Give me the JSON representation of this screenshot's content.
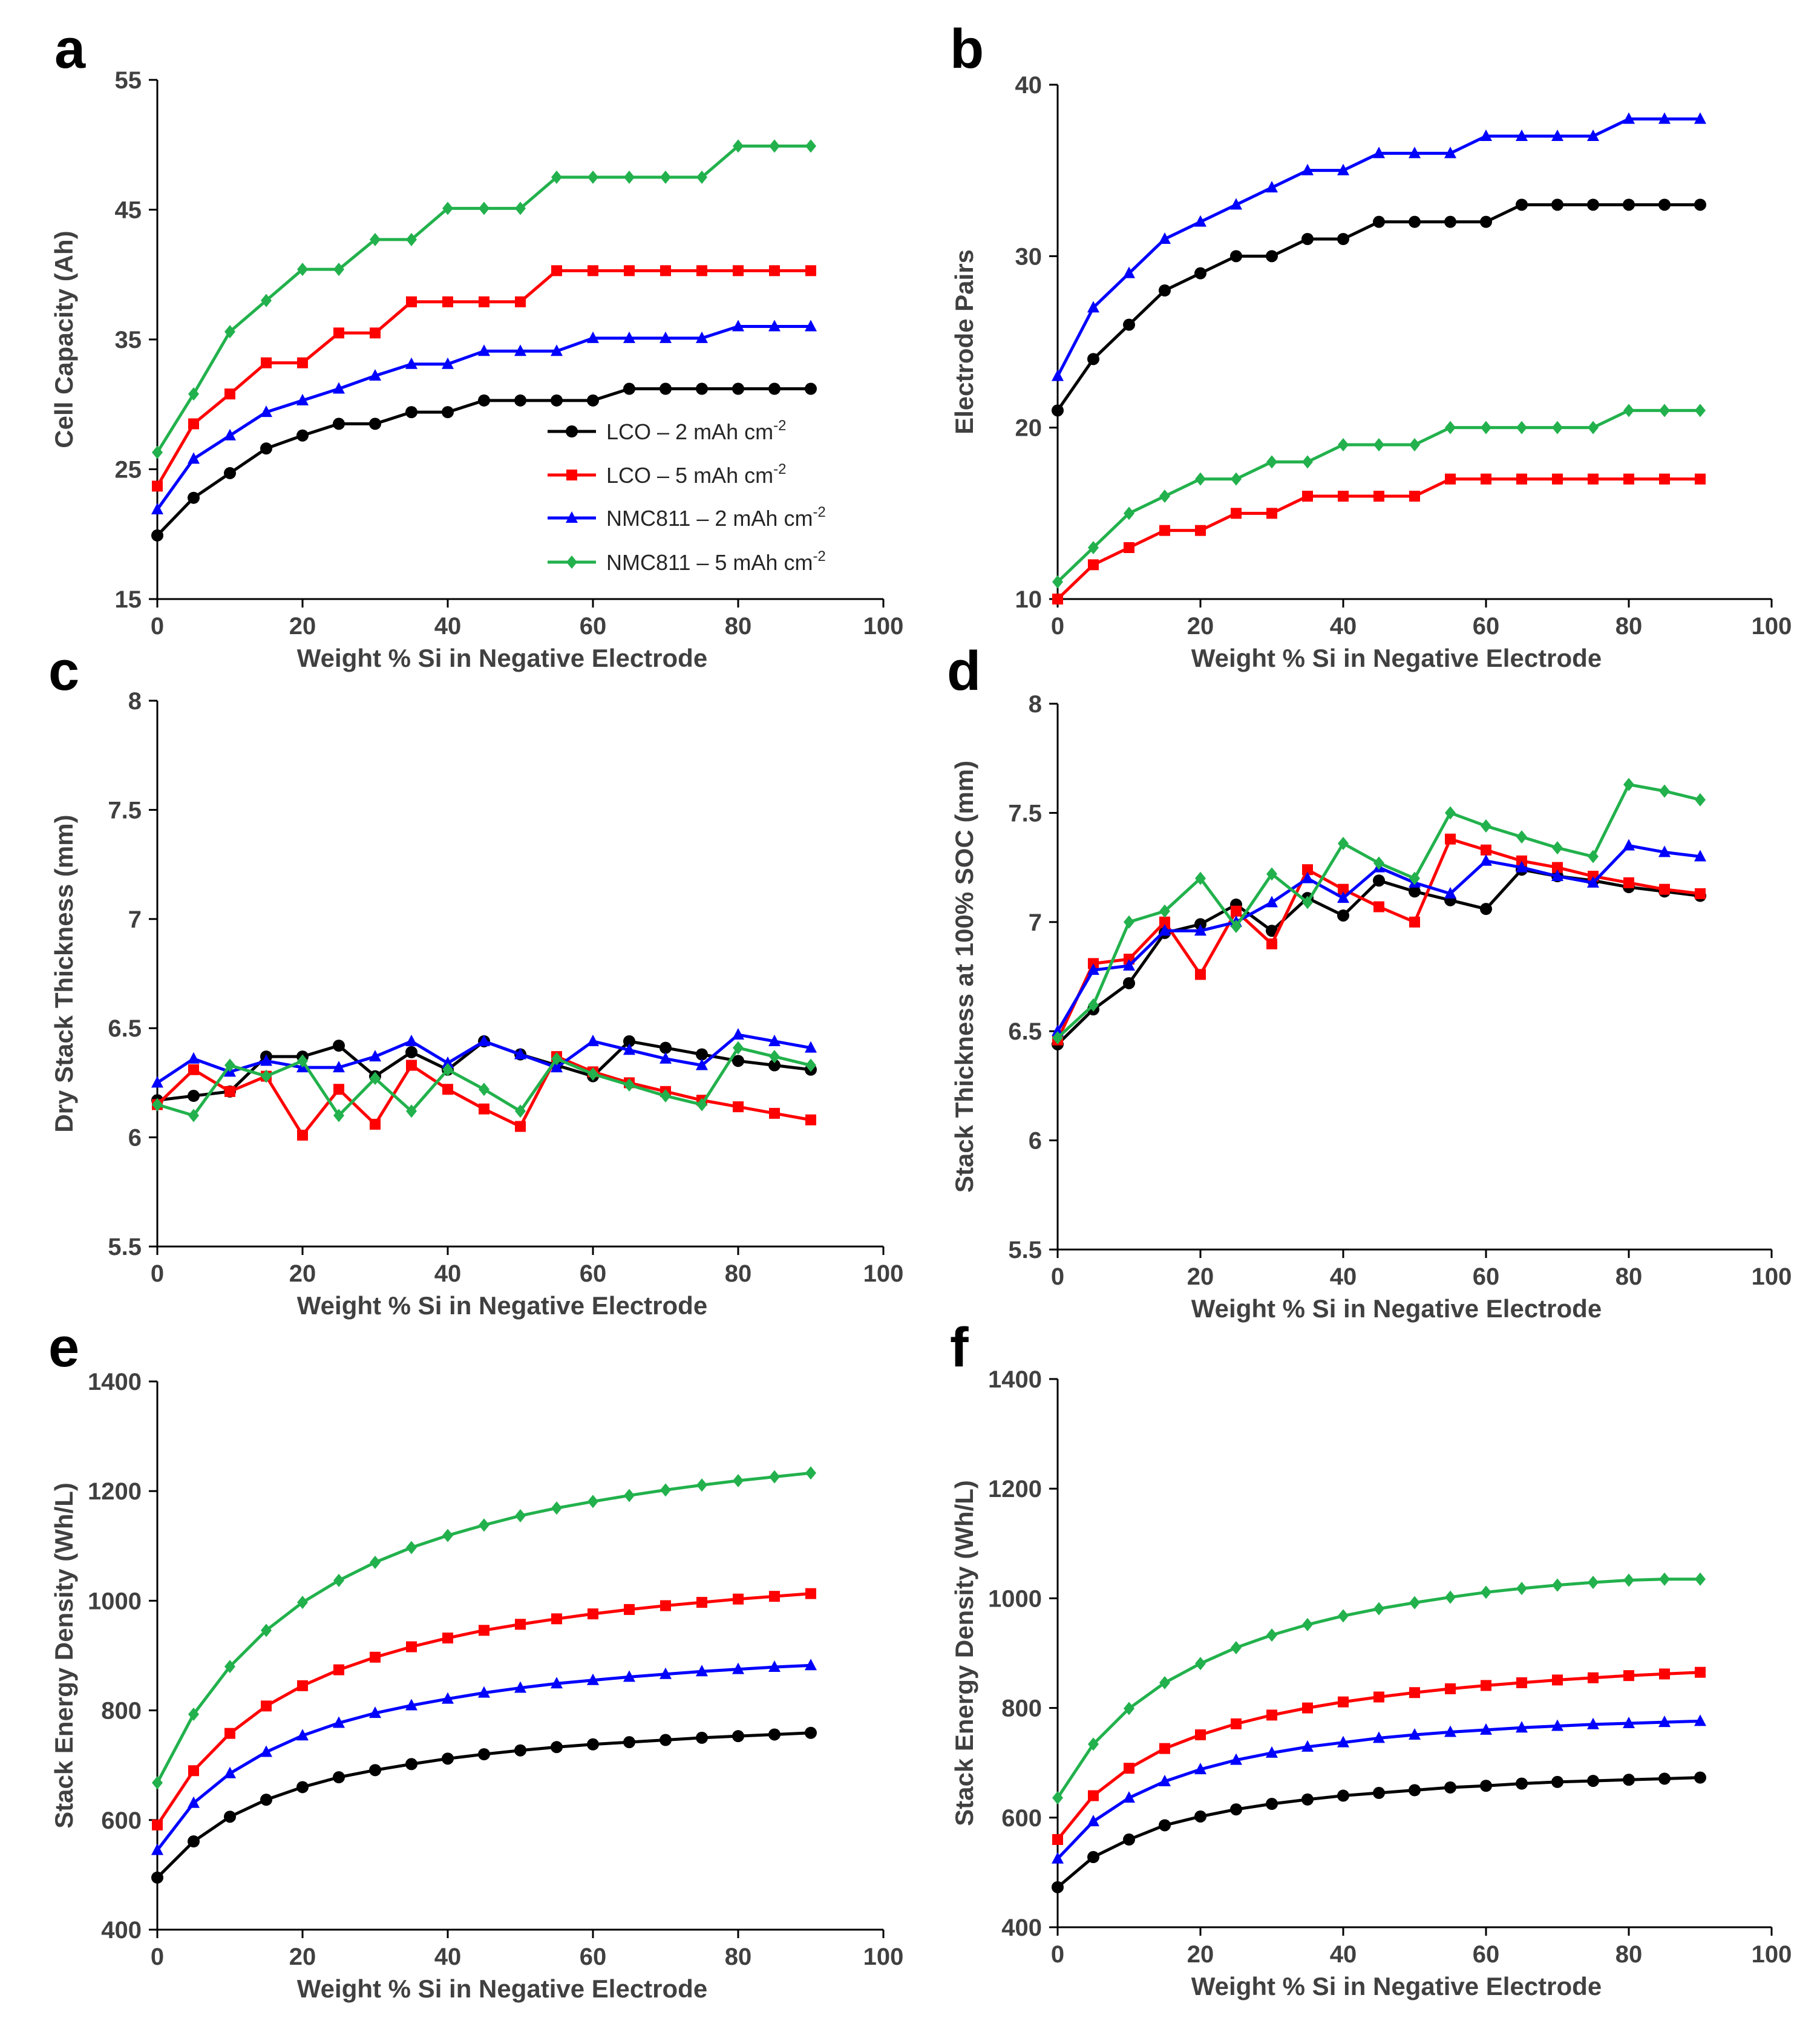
{
  "figure": {
    "legend": [
      {
        "series": 0,
        "prefix": "LCO – 2 mAh cm",
        "sup": "-2"
      },
      {
        "series": 1,
        "prefix": "LCO – 5 mAh cm",
        "sup": "-2"
      },
      {
        "series": 2,
        "prefix": "NMC811 – 2 mAh cm",
        "sup": "-2"
      },
      {
        "series": 3,
        "prefix": "NMC811 – 5 mAh cm",
        "sup": "-2"
      }
    ],
    "series_styles": [
      {
        "name": "LCO – 2 mAh cm-2",
        "color": "#000000",
        "marker": "circle"
      },
      {
        "name": "LCO – 5 mAh cm-2",
        "color": "#ff0000",
        "marker": "square"
      },
      {
        "name": "NMC811 – 2 mAh cm-2",
        "color": "#0000ff",
        "marker": "triangle"
      },
      {
        "name": "NMC811 – 5 mAh cm-2",
        "color": "#22b14c",
        "marker": "diamond"
      }
    ]
  },
  "chart_data": [
    {
      "panel": "a",
      "type": "line",
      "xlabel": "Weight % Si in Negative Electrode",
      "ylabel": "Cell Capacity (Ah)",
      "xlim": [
        0,
        100
      ],
      "ylim": [
        15,
        55
      ],
      "xticks": [
        0,
        20,
        40,
        60,
        80,
        100
      ],
      "yticks": [
        15,
        25,
        35,
        45,
        55
      ],
      "x": [
        0,
        5,
        10,
        15,
        20,
        25,
        30,
        35,
        40,
        45,
        50,
        55,
        60,
        65,
        70,
        75,
        80,
        85,
        90
      ],
      "series": [
        {
          "name": "LCO – 2 mAh cm-2",
          "values": [
            19.9,
            22.8,
            24.7,
            26.6,
            27.6,
            28.5,
            28.5,
            29.4,
            29.4,
            30.3,
            30.3,
            30.3,
            30.3,
            31.2,
            31.2,
            31.2,
            31.2,
            31.2,
            31.2
          ]
        },
        {
          "name": "LCO – 5 mAh cm-2",
          "values": [
            23.7,
            28.5,
            30.8,
            33.2,
            33.2,
            35.5,
            35.5,
            37.9,
            37.9,
            37.9,
            37.9,
            40.3,
            40.3,
            40.3,
            40.3,
            40.3,
            40.3,
            40.3,
            40.3
          ]
        },
        {
          "name": "NMC811 – 2 mAh cm-2",
          "values": [
            21.9,
            25.8,
            27.6,
            29.4,
            30.3,
            31.2,
            32.2,
            33.1,
            33.1,
            34.1,
            34.1,
            34.1,
            35.1,
            35.1,
            35.1,
            35.1,
            36.0,
            36.0,
            36.0
          ]
        },
        {
          "name": "NMC811 – 5 mAh cm-2",
          "values": [
            26.3,
            30.8,
            35.6,
            38.0,
            40.4,
            40.4,
            42.7,
            42.7,
            45.1,
            45.1,
            45.1,
            47.5,
            47.5,
            47.5,
            47.5,
            47.5,
            49.9,
            49.9,
            49.9
          ]
        }
      ]
    },
    {
      "panel": "b",
      "type": "line",
      "xlabel": "Weight % Si in Negative Electrode",
      "ylabel": "Electrode Pairs",
      "xlim": [
        0,
        100
      ],
      "ylim": [
        10,
        40
      ],
      "xticks": [
        0,
        20,
        40,
        60,
        80,
        100
      ],
      "yticks": [
        10,
        20,
        30,
        40
      ],
      "x": [
        0,
        5,
        10,
        15,
        20,
        25,
        30,
        35,
        40,
        45,
        50,
        55,
        60,
        65,
        70,
        75,
        80,
        85,
        90
      ],
      "series": [
        {
          "name": "LCO – 2 mAh cm-2",
          "values": [
            21,
            24,
            26,
            28,
            29,
            30,
            30,
            31,
            31,
            32,
            32,
            32,
            32,
            33,
            33,
            33,
            33,
            33,
            33
          ]
        },
        {
          "name": "LCO – 5 mAh cm-2",
          "values": [
            10,
            12,
            13,
            14,
            14,
            15,
            15,
            16,
            16,
            16,
            16,
            17,
            17,
            17,
            17,
            17,
            17,
            17,
            17
          ]
        },
        {
          "name": "NMC811 – 2 mAh cm-2",
          "values": [
            23,
            27,
            29,
            31,
            32,
            33,
            34,
            35,
            35,
            36,
            36,
            36,
            37,
            37,
            37,
            37,
            38,
            38,
            38
          ]
        },
        {
          "name": "NMC811 – 5 mAh cm-2",
          "values": [
            11,
            13,
            15,
            16,
            17,
            17,
            18,
            18,
            19,
            19,
            19,
            20,
            20,
            20,
            20,
            20,
            21,
            21,
            21
          ]
        }
      ]
    },
    {
      "panel": "c",
      "type": "line",
      "xlabel": "Weight % Si in Negative Electrode",
      "ylabel": "Dry Stack Thickness (mm)",
      "xlim": [
        0,
        100
      ],
      "ylim": [
        5.5,
        8
      ],
      "xticks": [
        0,
        20,
        40,
        60,
        80,
        100
      ],
      "yticks": [
        5.5,
        6,
        6.5,
        7,
        7.5,
        8
      ],
      "x": [
        0,
        5,
        10,
        15,
        20,
        25,
        30,
        35,
        40,
        45,
        50,
        55,
        60,
        65,
        70,
        75,
        80,
        85,
        90
      ],
      "series": [
        {
          "name": "LCO – 2 mAh cm-2",
          "values": [
            6.17,
            6.19,
            6.21,
            6.37,
            6.37,
            6.42,
            6.28,
            6.39,
            6.31,
            6.44,
            6.38,
            6.33,
            6.28,
            6.44,
            6.41,
            6.38,
            6.35,
            6.33,
            6.31
          ]
        },
        {
          "name": "LCO – 5 mAh cm-2",
          "values": [
            6.15,
            6.31,
            6.21,
            6.28,
            6.01,
            6.22,
            6.06,
            6.33,
            6.22,
            6.13,
            6.05,
            6.37,
            6.3,
            6.25,
            6.21,
            6.17,
            6.14,
            6.11,
            6.08
          ]
        },
        {
          "name": "NMC811 – 2 mAh cm-2",
          "values": [
            6.25,
            6.36,
            6.3,
            6.35,
            6.32,
            6.32,
            6.37,
            6.44,
            6.34,
            6.44,
            6.38,
            6.32,
            6.44,
            6.4,
            6.36,
            6.33,
            6.47,
            6.44,
            6.41
          ]
        },
        {
          "name": "NMC811 – 5 mAh cm-2",
          "values": [
            6.15,
            6.1,
            6.33,
            6.28,
            6.35,
            6.1,
            6.27,
            6.12,
            6.31,
            6.22,
            6.12,
            6.36,
            6.29,
            6.24,
            6.19,
            6.15,
            6.41,
            6.37,
            6.33
          ]
        }
      ]
    },
    {
      "panel": "d",
      "type": "line",
      "xlabel": "Weight % Si in Negative Electrode",
      "ylabel": "Stack Thickness at 100% SOC (mm)",
      "xlim": [
        0,
        100
      ],
      "ylim": [
        5.5,
        8
      ],
      "xticks": [
        0,
        20,
        40,
        60,
        80,
        100
      ],
      "yticks": [
        5.5,
        6,
        6.5,
        7,
        7.5,
        8
      ],
      "x": [
        0,
        5,
        10,
        15,
        20,
        25,
        30,
        35,
        40,
        45,
        50,
        55,
        60,
        65,
        70,
        75,
        80,
        85,
        90
      ],
      "series": [
        {
          "name": "LCO – 2 mAh cm-2",
          "values": [
            6.44,
            6.6,
            6.72,
            6.95,
            6.99,
            7.08,
            6.96,
            7.11,
            7.03,
            7.19,
            7.14,
            7.1,
            7.06,
            7.24,
            7.21,
            7.19,
            7.16,
            7.14,
            7.12
          ]
        },
        {
          "name": "LCO – 5 mAh cm-2",
          "values": [
            6.46,
            6.81,
            6.83,
            7.0,
            6.76,
            7.05,
            6.9,
            7.24,
            7.15,
            7.07,
            7.0,
            7.38,
            7.33,
            7.28,
            7.25,
            7.21,
            7.18,
            7.15,
            7.13
          ]
        },
        {
          "name": "NMC811 – 2 mAh cm-2",
          "values": [
            6.5,
            6.78,
            6.8,
            6.96,
            6.96,
            7.0,
            7.09,
            7.2,
            7.11,
            7.25,
            7.18,
            7.13,
            7.28,
            7.25,
            7.21,
            7.18,
            7.35,
            7.32,
            7.3
          ]
        },
        {
          "name": "NMC811 – 5 mAh cm-2",
          "values": [
            6.47,
            6.62,
            7.0,
            7.05,
            7.2,
            6.98,
            7.22,
            7.09,
            7.36,
            7.27,
            7.2,
            7.5,
            7.44,
            7.39,
            7.34,
            7.3,
            7.63,
            7.6,
            7.56
          ]
        }
      ]
    },
    {
      "panel": "e",
      "type": "line",
      "xlabel": "Weight % Si in Negative Electrode",
      "ylabel": "Stack Energy Density (Wh/L)",
      "xlim": [
        0,
        100
      ],
      "ylim": [
        400,
        1400
      ],
      "xticks": [
        0,
        20,
        40,
        60,
        80,
        100
      ],
      "yticks": [
        400,
        600,
        800,
        1000,
        1200,
        1400
      ],
      "x": [
        0,
        5,
        10,
        15,
        20,
        25,
        30,
        35,
        40,
        45,
        50,
        55,
        60,
        65,
        70,
        75,
        80,
        85,
        90
      ],
      "series": [
        {
          "name": "LCO – 2 mAh cm-2",
          "values": [
            495,
            561,
            606,
            637,
            660,
            678,
            691,
            702,
            712,
            720,
            727,
            733,
            738,
            742,
            746,
            750,
            753,
            756,
            759
          ]
        },
        {
          "name": "LCO – 5 mAh cm-2",
          "values": [
            591,
            690,
            758,
            808,
            845,
            874,
            897,
            916,
            932,
            946,
            957,
            967,
            976,
            984,
            991,
            997,
            1003,
            1008,
            1013
          ]
        },
        {
          "name": "NMC811 – 2 mAh cm-2",
          "values": [
            545,
            631,
            685,
            724,
            754,
            777,
            795,
            809,
            821,
            832,
            841,
            849,
            855,
            861,
            866,
            871,
            875,
            879,
            882
          ]
        },
        {
          "name": "NMC811 – 5 mAh cm-2",
          "values": [
            668,
            793,
            880,
            946,
            997,
            1037,
            1070,
            1097,
            1119,
            1138,
            1155,
            1169,
            1181,
            1192,
            1202,
            1211,
            1219,
            1226,
            1233
          ]
        }
      ]
    },
    {
      "panel": "f",
      "type": "line",
      "xlabel": "Weight % Si in Negative Electrode",
      "ylabel": "Stack Energy Density (Wh/L)",
      "xlim": [
        0,
        100
      ],
      "ylim": [
        400,
        1400
      ],
      "xticks": [
        0,
        20,
        40,
        60,
        80,
        100
      ],
      "yticks": [
        400,
        600,
        800,
        1000,
        1200,
        1400
      ],
      "x": [
        0,
        5,
        10,
        15,
        20,
        25,
        30,
        35,
        40,
        45,
        50,
        55,
        60,
        65,
        70,
        75,
        80,
        85,
        90
      ],
      "series": [
        {
          "name": "LCO – 2 mAh cm-2",
          "values": [
            473,
            528,
            560,
            586,
            602,
            615,
            625,
            633,
            640,
            645,
            650,
            655,
            658,
            662,
            665,
            667,
            669,
            671,
            673
          ]
        },
        {
          "name": "LCO – 5 mAh cm-2",
          "values": [
            560,
            640,
            690,
            726,
            751,
            771,
            787,
            800,
            811,
            820,
            828,
            835,
            841,
            846,
            851,
            855,
            859,
            862,
            865
          ]
        },
        {
          "name": "NMC811 – 2 mAh cm-2",
          "values": [
            525,
            593,
            636,
            666,
            688,
            705,
            718,
            729,
            737,
            745,
            751,
            756,
            760,
            764,
            767,
            770,
            772,
            774,
            776
          ]
        },
        {
          "name": "NMC811 – 5 mAh cm-2",
          "values": [
            636,
            734,
            799,
            846,
            881,
            910,
            933,
            952,
            968,
            981,
            992,
            1002,
            1011,
            1018,
            1024,
            1029,
            1033,
            1035,
            1035
          ]
        }
      ]
    }
  ]
}
